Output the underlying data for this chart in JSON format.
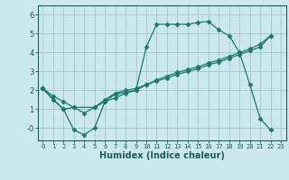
{
  "background_color": "#cce8ea",
  "grid_color": "#aacdd0",
  "line_color": "#1a7a6e",
  "xlabel": "Humidex (Indice chaleur)",
  "xlim": [
    -0.5,
    23.5
  ],
  "ylim": [
    -0.65,
    6.5
  ],
  "ytick_labels": [
    "-0",
    "1",
    "2",
    "3",
    "4",
    "5",
    "6"
  ],
  "ytick_vals": [
    0,
    1,
    2,
    3,
    4,
    5,
    6
  ],
  "xticks": [
    0,
    1,
    2,
    3,
    4,
    5,
    6,
    7,
    8,
    9,
    10,
    11,
    12,
    13,
    14,
    15,
    16,
    17,
    18,
    19,
    20,
    21,
    22,
    23
  ],
  "line1_x": [
    0,
    1,
    2,
    3,
    4,
    5,
    6,
    7,
    8,
    9,
    10,
    11,
    12,
    13,
    14,
    15,
    16,
    17,
    18,
    19,
    20,
    21,
    22
  ],
  "line1_y": [
    2.1,
    1.5,
    1.0,
    -0.1,
    -0.35,
    0.0,
    1.4,
    1.8,
    1.9,
    2.0,
    4.3,
    5.5,
    5.5,
    5.5,
    5.5,
    5.6,
    5.65,
    5.2,
    4.9,
    4.0,
    2.3,
    0.5,
    -0.1
  ],
  "line2_x": [
    0,
    2,
    3,
    5,
    6,
    7,
    8,
    9,
    10,
    11,
    12,
    13,
    14,
    15,
    16,
    17,
    18,
    19,
    20,
    21,
    22
  ],
  "line2_y": [
    2.1,
    1.0,
    1.1,
    1.1,
    1.4,
    1.6,
    1.85,
    2.0,
    2.3,
    2.55,
    2.75,
    2.95,
    3.1,
    3.25,
    3.45,
    3.6,
    3.8,
    4.0,
    4.2,
    4.45,
    4.9
  ],
  "line3_x": [
    0,
    1,
    2,
    3,
    4,
    5,
    6,
    7,
    8,
    9,
    10,
    11,
    12,
    13,
    14,
    15,
    16,
    17,
    18,
    19,
    20,
    21,
    22
  ],
  "line3_y": [
    2.1,
    1.7,
    1.4,
    1.1,
    0.8,
    1.1,
    1.5,
    1.85,
    2.0,
    2.1,
    2.3,
    2.5,
    2.65,
    2.85,
    3.0,
    3.15,
    3.35,
    3.5,
    3.7,
    3.9,
    4.1,
    4.3,
    4.9
  ]
}
